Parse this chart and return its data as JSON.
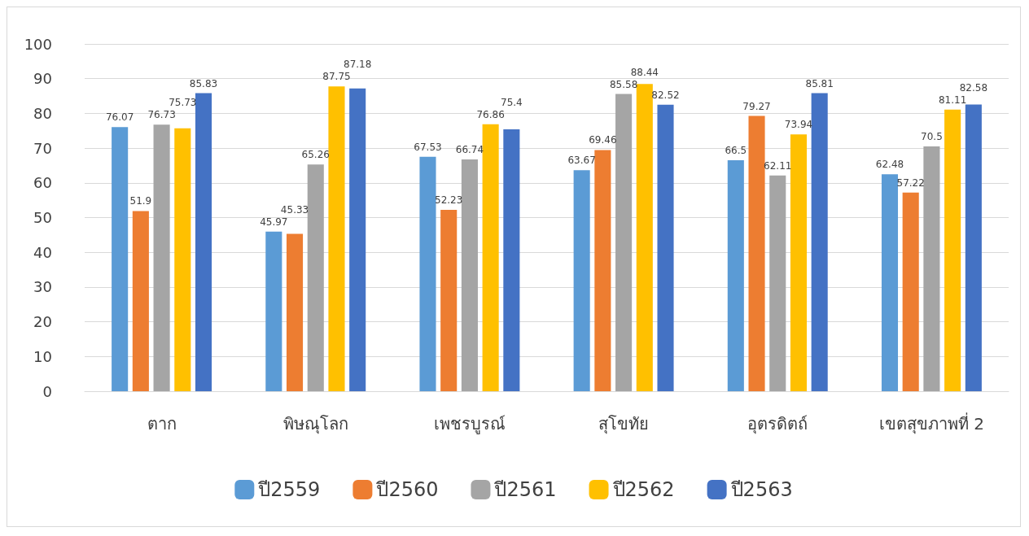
{
  "chart_data": {
    "type": "bar",
    "categories": [
      "ตาก",
      "พิษณุโลก",
      "เพชรบูรณ์",
      "สุโขทัย",
      "อุตรดิตถ์",
      "เขตสุขภาพที่ 2"
    ],
    "series": [
      {
        "name": "ปี2559",
        "color": "#5b9bd5",
        "values": [
          76.07,
          45.97,
          67.53,
          63.67,
          66.5,
          62.48
        ]
      },
      {
        "name": "ปี2560",
        "color": "#ed7d31",
        "values": [
          51.9,
          45.33,
          52.23,
          69.46,
          79.27,
          57.22
        ]
      },
      {
        "name": "ปี2561",
        "color": "#a5a5a5",
        "values": [
          76.73,
          65.26,
          66.74,
          85.58,
          62.11,
          70.5
        ]
      },
      {
        "name": "ปี2562",
        "color": "#ffc000",
        "values": [
          75.73,
          87.75,
          76.86,
          88.44,
          73.94,
          81.11
        ]
      },
      {
        "name": "ปี2563",
        "color": "#4472c4",
        "values": [
          85.83,
          87.18,
          75.4,
          82.52,
          85.81,
          82.58
        ]
      }
    ],
    "ylim": [
      0,
      100
    ],
    "yticks": [
      0,
      10,
      20,
      30,
      40,
      50,
      60,
      70,
      80,
      90,
      100
    ],
    "grid": "y",
    "legend": "bottom",
    "data_labels": true
  }
}
